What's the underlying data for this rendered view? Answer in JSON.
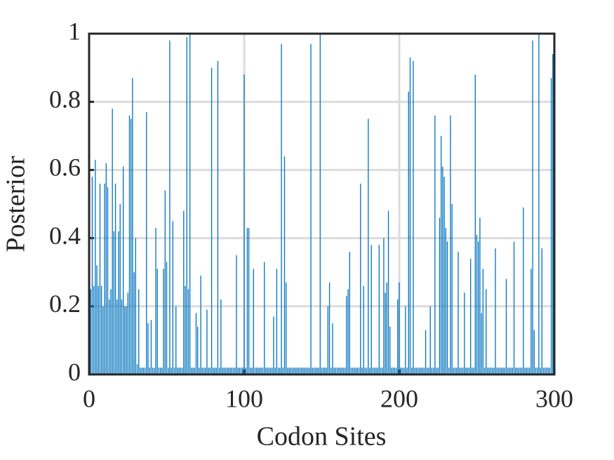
{
  "chart_data": {
    "type": "bar",
    "xlabel": "Codon Sites",
    "ylabel": "Posterior",
    "color": "#0072bd",
    "grid": true,
    "xlim": [
      0,
      300
    ],
    "xticks": [
      0,
      100,
      200,
      300
    ],
    "ylim": [
      0,
      1
    ],
    "yticks": [
      0,
      0.2,
      0.4,
      0.6,
      0.8,
      1
    ],
    "x": [
      1,
      2,
      3,
      4,
      5,
      6,
      7,
      8,
      9,
      10,
      11,
      12,
      13,
      14,
      15,
      16,
      17,
      18,
      19,
      20,
      21,
      22,
      23,
      24,
      25,
      26,
      27,
      28,
      29,
      30,
      31,
      32,
      33,
      34,
      35,
      36,
      37,
      38,
      39,
      40,
      41,
      42,
      43,
      44,
      45,
      46,
      47,
      48,
      49,
      50,
      51,
      52,
      53,
      54,
      55,
      56,
      57,
      58,
      59,
      60,
      61,
      62,
      63,
      64,
      65,
      66,
      67,
      68,
      69,
      70,
      71,
      72,
      73,
      74,
      75,
      76,
      77,
      78,
      79,
      80,
      81,
      82,
      83,
      84,
      85,
      86,
      87,
      88,
      89,
      90,
      91,
      92,
      93,
      94,
      95,
      96,
      97,
      98,
      99,
      100,
      101,
      102,
      103,
      104,
      105,
      106,
      107,
      108,
      109,
      110,
      111,
      112,
      113,
      114,
      115,
      116,
      117,
      118,
      119,
      120,
      121,
      122,
      123,
      124,
      125,
      126,
      127,
      128,
      129,
      130,
      131,
      132,
      133,
      134,
      135,
      136,
      137,
      138,
      139,
      140,
      141,
      142,
      143,
      144,
      145,
      146,
      147,
      148,
      149,
      150,
      151,
      152,
      153,
      154,
      155,
      156,
      157,
      158,
      159,
      160,
      161,
      162,
      163,
      164,
      165,
      166,
      167,
      168,
      169,
      170,
      171,
      172,
      173,
      174,
      175,
      176,
      177,
      178,
      179,
      180,
      181,
      182,
      183,
      184,
      185,
      186,
      187,
      188,
      189,
      190,
      191,
      192,
      193,
      194,
      195,
      196,
      197,
      198,
      199,
      200,
      201,
      202,
      203,
      204,
      205,
      206,
      207,
      208,
      209,
      210,
      211,
      212,
      213,
      214,
      215,
      216,
      217,
      218,
      219,
      220,
      221,
      222,
      223,
      224,
      225,
      226,
      227,
      228,
      229,
      230,
      231,
      232,
      233,
      234,
      235,
      236,
      237,
      238,
      239,
      240,
      241,
      242,
      243,
      244,
      245,
      246,
      247,
      248,
      249,
      250,
      251,
      252,
      253,
      254,
      255,
      256,
      257,
      258,
      259,
      260,
      261,
      262,
      263,
      264,
      265,
      266,
      267,
      268,
      269,
      270,
      271,
      272,
      273,
      274,
      275,
      276,
      277,
      278,
      279,
      280,
      281,
      282,
      283,
      284,
      285,
      286,
      287,
      288,
      289,
      290,
      291,
      292,
      293,
      294,
      295,
      296,
      297,
      298,
      299,
      300
    ],
    "values": [
      0.25,
      0.58,
      0.26,
      0.63,
      0.32,
      0.26,
      0.56,
      0.26,
      0.2,
      0.56,
      0.62,
      0.55,
      0.22,
      0.25,
      0.78,
      0.42,
      0.56,
      0.22,
      0.42,
      0.5,
      0.22,
      0.61,
      0.2,
      0.2,
      0.24,
      0.76,
      0.75,
      0.87,
      0.3,
      0.4,
      0.03,
      0.25,
      0.02,
      0.02,
      0.02,
      0.02,
      0.77,
      0.15,
      0.02,
      0.16,
      0.02,
      0.02,
      0.43,
      0.31,
      0.02,
      0.02,
      0.02,
      0.31,
      0.54,
      0.33,
      0.02,
      0.98,
      0.02,
      0.45,
      0.02,
      0.2,
      0.02,
      0.02,
      0.02,
      0.02,
      0.48,
      0.26,
      0.99,
      0.25,
      1,
      0.02,
      0.02,
      0.02,
      0.18,
      0.14,
      0.02,
      0.29,
      0.02,
      0.02,
      0.02,
      0.19,
      0.02,
      0.02,
      0.9,
      0.02,
      0.02,
      0.02,
      0.92,
      0.02,
      0.22,
      0.02,
      0.02,
      0.02,
      0.02,
      0.02,
      0.02,
      0.02,
      0.02,
      0.02,
      0.35,
      0.02,
      0.02,
      0.02,
      0.02,
      0.88,
      0.02,
      0.43,
      0.43,
      0.02,
      0.02,
      0.31,
      0.02,
      0.02,
      0.02,
      0.02,
      0.02,
      0.02,
      0.33,
      0.02,
      0.02,
      0.02,
      0.02,
      0.02,
      0.17,
      0.02,
      0.31,
      0.02,
      0.02,
      0.97,
      0.02,
      0.64,
      0.27,
      0.02,
      0.02,
      0.02,
      0.02,
      0.02,
      0.02,
      0.02,
      0.02,
      0.02,
      0.02,
      0.02,
      0.02,
      0.02,
      0.02,
      0.02,
      0.97,
      0.02,
      0.02,
      0.02,
      0.02,
      0.02,
      1,
      0.02,
      0.02,
      0.02,
      0.02,
      0.2,
      0.27,
      0.02,
      0.15,
      0.02,
      0.02,
      0.02,
      0.02,
      0.02,
      0.02,
      0.02,
      0.02,
      0.23,
      0.25,
      0.36,
      0.02,
      0.02,
      0.02,
      0.02,
      0.02,
      0.02,
      0.56,
      0.02,
      0.26,
      0.02,
      0.02,
      0.75,
      0.02,
      0.38,
      0.02,
      0.02,
      0.02,
      0.02,
      0.38,
      0.02,
      0.02,
      0.4,
      0.24,
      0.27,
      0.48,
      0.14,
      0.02,
      0.02,
      0.02,
      0.02,
      0.22,
      0.27,
      0.02,
      0.02,
      0.02,
      0.2,
      0.02,
      0.83,
      0.93,
      0.02,
      0.92,
      0.02,
      0.02,
      0.02,
      0.02,
      0.02,
      0.02,
      0.02,
      0.13,
      0.02,
      0.02,
      0.2,
      0.02,
      0.02,
      0.76,
      0.02,
      0.02,
      0.46,
      0.7,
      0.61,
      0.58,
      0.43,
      0.39,
      0.02,
      0.76,
      0.5,
      0.02,
      0.02,
      0.02,
      0.36,
      0.02,
      0.02,
      0.02,
      0.24,
      0.02,
      0.02,
      0.02,
      0.34,
      0.02,
      0.02,
      0.88,
      0.41,
      0.39,
      0.46,
      0.18,
      0.31,
      0.02,
      0.25,
      0.02,
      0.02,
      0.02,
      0.02,
      0.02,
      0.37,
      0.02,
      0.02,
      0.02,
      0.02,
      0.02,
      0.02,
      0.28,
      0.02,
      0.02,
      0.02,
      0.02,
      0.39,
      0.02,
      0.02,
      0.02,
      0.02,
      0.02,
      0.49,
      0.02,
      0.02,
      0.02,
      0.02,
      0.31,
      0.98,
      0.13,
      0.02,
      0.02,
      1,
      0.02,
      0.37,
      0.02,
      0.02,
      0.02,
      0.02,
      0.02,
      0.87,
      0.94,
      0.98
    ]
  }
}
